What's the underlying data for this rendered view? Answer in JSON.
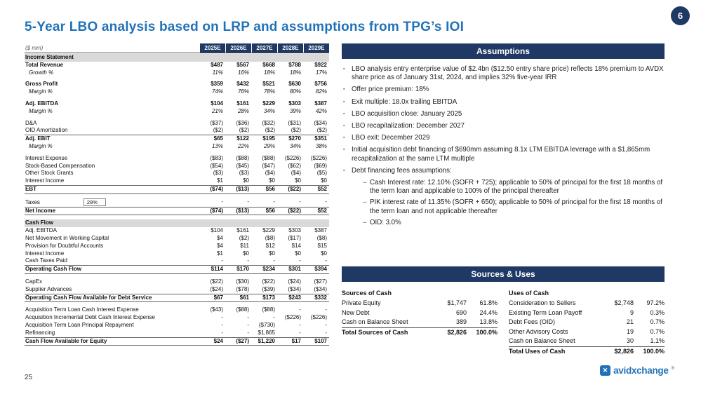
{
  "page": {
    "badge": "6",
    "title": "5-Year LBO analysis based on LRP and assumptions from TPG’s IOI",
    "page_number": "25",
    "logo": {
      "text": "avidxchange",
      "reg": "®",
      "icon": "x-icon"
    }
  },
  "colors": {
    "navy": "#1f3864",
    "accent": "#2272b9",
    "bullet-blue": "#2e75b6",
    "section-gray": "#d9d9d9"
  },
  "table": {
    "unit_label": "($ mm)",
    "columns": [
      "2025E",
      "2026E",
      "2027E",
      "2028E",
      "2029E"
    ],
    "rows": [
      {
        "label": "Income Statement",
        "type": "section"
      },
      {
        "label": "Total Revenue",
        "type": "bold",
        "values": [
          "$487",
          "$567",
          "$668",
          "$788",
          "$922"
        ]
      },
      {
        "label": "Growth %",
        "type": "italic",
        "values": [
          "11%",
          "16%",
          "18%",
          "18%",
          "17%"
        ]
      },
      {
        "type": "spacer"
      },
      {
        "label": "Gross Profit",
        "type": "bold",
        "values": [
          "$359",
          "$432",
          "$521",
          "$630",
          "$756"
        ]
      },
      {
        "label": "Margin %",
        "type": "italic",
        "values": [
          "74%",
          "76%",
          "78%",
          "80%",
          "82%"
        ]
      },
      {
        "type": "spacer"
      },
      {
        "label": "Adj. EBITDA",
        "type": "bold",
        "values": [
          "$104",
          "$161",
          "$229",
          "$303",
          "$387"
        ]
      },
      {
        "label": "Margin %",
        "type": "italic",
        "values": [
          "21%",
          "28%",
          "34%",
          "39%",
          "42%"
        ]
      },
      {
        "type": "spacer"
      },
      {
        "label": "D&A",
        "values": [
          "($37)",
          "($36)",
          "($32)",
          "($31)",
          "($34)"
        ]
      },
      {
        "label": "OID Amortization",
        "underline": true,
        "values": [
          "($2)",
          "($2)",
          "($2)",
          "($2)",
          "($2)"
        ]
      },
      {
        "label": "Adj. EBIT",
        "type": "bold",
        "values": [
          "$65",
          "$122",
          "$195",
          "$270",
          "$351"
        ]
      },
      {
        "label": "Margin %",
        "type": "italic",
        "values": [
          "13%",
          "22%",
          "29%",
          "34%",
          "38%"
        ]
      },
      {
        "type": "spacer"
      },
      {
        "label": "Interest Expense",
        "values": [
          "($83)",
          "($88)",
          "($88)",
          "($226)",
          "($226)"
        ]
      },
      {
        "label": "Stock-Based Compensation",
        "values": [
          "($54)",
          "($45)",
          "($47)",
          "($62)",
          "($69)"
        ]
      },
      {
        "label": "Other Stock Grants",
        "values": [
          "($3)",
          "($3)",
          "($4)",
          "($4)",
          "($5)"
        ]
      },
      {
        "label": "Interest Income",
        "underline": true,
        "values": [
          "$1",
          "$0",
          "$0",
          "$0",
          "$0"
        ]
      },
      {
        "label": "EBT",
        "type": "bold",
        "border_bottom": true,
        "values": [
          "($74)",
          "($13)",
          "$56",
          "($22)",
          "$52"
        ]
      },
      {
        "type": "spacer"
      },
      {
        "label": "Taxes",
        "tax_box": "28%",
        "underline": true,
        "values": [
          "-",
          "-",
          "-",
          "-",
          "-"
        ]
      },
      {
        "label": "Net Income",
        "type": "bold",
        "border_bottom": true,
        "values": [
          "($74)",
          "($13)",
          "$56",
          "($22)",
          "$52"
        ]
      },
      {
        "type": "spacer"
      },
      {
        "label": "Cash Flow",
        "type": "section"
      },
      {
        "label": "Adj. EBITDA",
        "values": [
          "$104",
          "$161",
          "$229",
          "$303",
          "$387"
        ]
      },
      {
        "label": "Net Movement in Working Capital",
        "values": [
          "$4",
          "($2)",
          "($8)",
          "($17)",
          "($8)"
        ]
      },
      {
        "label": "Provision for Doubtful Accounts",
        "values": [
          "$4",
          "$11",
          "$12",
          "$14",
          "$15"
        ]
      },
      {
        "label": "Interest Income",
        "values": [
          "$1",
          "$0",
          "$0",
          "$0",
          "$0"
        ]
      },
      {
        "label": "Cash Taxes Paid",
        "underline": true,
        "values": [
          "-",
          "-",
          "-",
          "-",
          "-"
        ]
      },
      {
        "label": "Operating Cash Flow",
        "type": "bold",
        "border_bottom": true,
        "values": [
          "$114",
          "$170",
          "$234",
          "$301",
          "$394"
        ]
      },
      {
        "type": "spacer"
      },
      {
        "label": "CapEx",
        "values": [
          "($22)",
          "($30)",
          "($22)",
          "($24)",
          "($27)"
        ]
      },
      {
        "label": "Supplier Advances",
        "underline": true,
        "values": [
          "($24)",
          "($78)",
          "($39)",
          "($34)",
          "($34)"
        ]
      },
      {
        "label": "Operating Cash Flow Available for Debt Service",
        "type": "bold",
        "border_bottom": true,
        "values": [
          "$67",
          "$61",
          "$173",
          "$243",
          "$332"
        ]
      },
      {
        "type": "spacer"
      },
      {
        "label": "Acquisition Term Loan Cash Interest Expense",
        "values": [
          "($43)",
          "($88)",
          "($88)",
          "-",
          "-"
        ]
      },
      {
        "label": "Acquisition Incremental Debt Cash Interest Expense",
        "values": [
          "-",
          "-",
          "-",
          "($226)",
          "($226)"
        ]
      },
      {
        "label": "Acquisition Term Loan Principal Repayment",
        "values": [
          "-",
          "-",
          "($730)",
          "-",
          "-"
        ]
      },
      {
        "label": "Refinancing",
        "underline": true,
        "values": [
          "-",
          "-",
          "$1,865",
          "-",
          "-"
        ]
      },
      {
        "label": "Cash Flow Available for Equity",
        "type": "bold",
        "border_bottom": true,
        "values": [
          "$24",
          "($27)",
          "$1,220",
          "$17",
          "$107"
        ]
      }
    ]
  },
  "assumptions": {
    "header": "Assumptions",
    "items": [
      {
        "level": 1,
        "text": "LBO analysis entry enterprise value of $2.4bn ($12.50 entry share price) reflects 18% premium to AVDX share price as of January 31st, 2024, and implies 32% five-year IRR"
      },
      {
        "level": 1,
        "text": "Offer price premium: 18%"
      },
      {
        "level": 1,
        "text": "Exit multiple: 18.0x trailing EBITDA"
      },
      {
        "level": 1,
        "text": "LBO acquisition close: January 2025"
      },
      {
        "level": 1,
        "text": "LBO recapitalization: December 2027"
      },
      {
        "level": 1,
        "text": "LBO exit: December 2029"
      },
      {
        "level": 1,
        "text": "Initial acquisition debt financing of $690mm assuming 8.1x LTM EBITDA leverage with a $1,865mm recapitalization at the same LTM multiple"
      },
      {
        "level": 1,
        "text": "Debt financing fees assumptions:"
      },
      {
        "level": 2,
        "text": "Cash Interest rate: 12.10% (SOFR + 725); applicable to 50% of principal for the first 18 months of the term loan and applicable to 100% of the principal thereafter"
      },
      {
        "level": 2,
        "text": "PIK interest rate of 11.35% (SOFR + 650); applicable to 50% of principal for the first 18 months of the term loan and not applicable thereafter"
      },
      {
        "level": 2,
        "text": "OID: 3.0%"
      }
    ]
  },
  "sources_uses": {
    "header": "Sources & Uses",
    "sources": {
      "title": "Sources of Cash",
      "rows": [
        {
          "label": "Private Equity",
          "amount": "$1,747",
          "pct": "61.8%"
        },
        {
          "label": "New Debt",
          "amount": "690",
          "pct": "24.4%"
        },
        {
          "label": "Cash on Balance Sheet",
          "amount": "389",
          "pct": "13.8%",
          "underline": true
        },
        {
          "label": "Total Sources of Cash",
          "amount": "$2,826",
          "pct": "100.0%",
          "bold": true
        }
      ]
    },
    "uses": {
      "title": "Uses of Cash",
      "rows": [
        {
          "label": "Consideration to Sellers",
          "amount": "$2,748",
          "pct": "97.2%"
        },
        {
          "label": "Existing Term Loan Payoff",
          "amount": "9",
          "pct": "0.3%"
        },
        {
          "label": "Debt Fees (OID)",
          "amount": "21",
          "pct": "0.7%"
        },
        {
          "label": "Other Advisory Costs",
          "amount": "19",
          "pct": "0.7%"
        },
        {
          "label": "Cash on Balance Sheet",
          "amount": "30",
          "pct": "1.1%",
          "underline": true
        },
        {
          "label": "Total Uses of Cash",
          "amount": "$2,826",
          "pct": "100.0%",
          "bold": true
        }
      ]
    }
  }
}
